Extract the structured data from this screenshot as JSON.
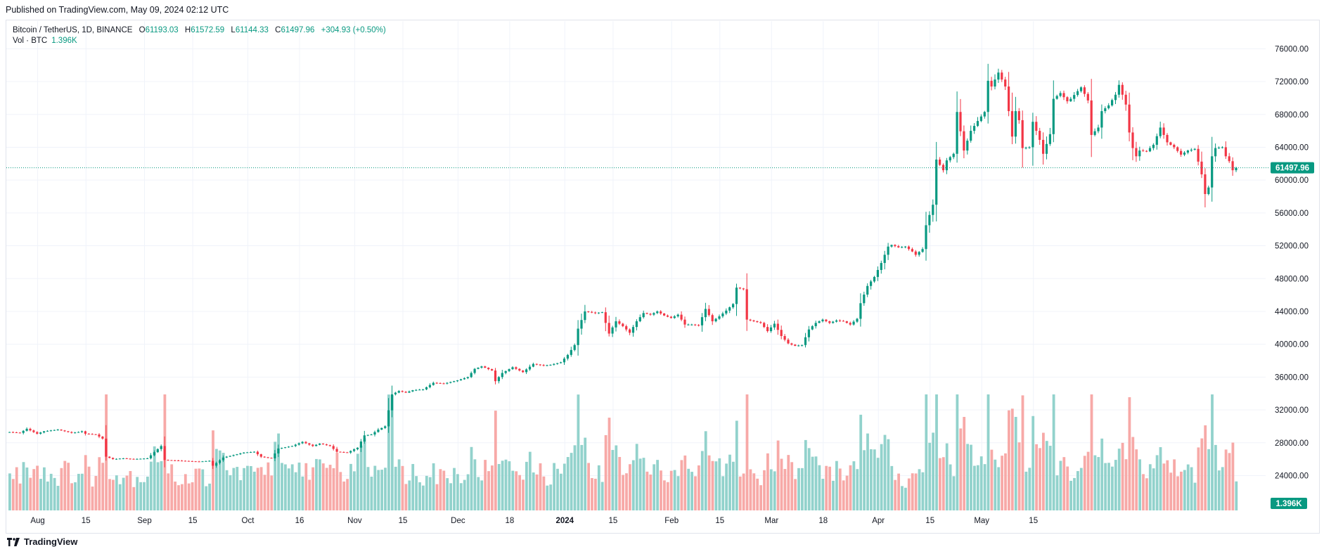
{
  "header": {
    "published": "Published on TradingView.com, May 09, 2024 02:12 UTC"
  },
  "legend": {
    "symbol": "Bitcoin / TetherUS, 1D, BINANCE",
    "o_label": "O",
    "o_value": "61193.03",
    "h_label": "H",
    "h_value": "61572.59",
    "l_label": "L",
    "l_value": "61144.33",
    "c_label": "C",
    "c_value": "61497.96",
    "change": "+304.93 (+0.50%)"
  },
  "vol_legend": {
    "label": "Vol · BTC",
    "value": "1.396K"
  },
  "footer": {
    "brand": "TradingView"
  },
  "colors": {
    "up": "#089981",
    "down": "#f23645",
    "vol_up": "#92d2cc",
    "vol_down": "#f7a9a7",
    "grid": "#f0f3fa"
  },
  "chart_data": {
    "type": "candlestick",
    "symbol": "BTCUSDT",
    "interval": "1D",
    "x": [
      "Aug",
      "15",
      "Sep",
      "15",
      "Oct",
      "16",
      "Nov",
      "15",
      "Dec",
      "18",
      "2024",
      "15",
      "Feb",
      "15",
      "Mar",
      "18",
      "Apr",
      "15",
      "May",
      "15"
    ],
    "y_ticks": [
      "76000.00",
      "72000.00",
      "68000.00",
      "64000.00",
      "60000.00",
      "56000.00",
      "52000.00",
      "48000.00",
      "44000.00",
      "40000.00",
      "36000.00",
      "32000.00",
      "28000.00",
      "24000.00"
    ],
    "ylim": [
      22000,
      78000
    ],
    "last_price_label": "61497.96",
    "volume_label": "1.396K",
    "close_anchors": [
      [
        0,
        29300
      ],
      [
        3,
        29200
      ],
      [
        5,
        29700
      ],
      [
        8,
        29100
      ],
      [
        10,
        29400
      ],
      [
        12,
        29500
      ],
      [
        14,
        29600
      ],
      [
        16,
        29400
      ],
      [
        18,
        29200
      ],
      [
        20,
        29300
      ],
      [
        21,
        29400
      ],
      [
        22,
        29100
      ],
      [
        25,
        29000
      ],
      [
        27,
        28500
      ],
      [
        28,
        26300
      ],
      [
        30,
        26000
      ],
      [
        33,
        26100
      ],
      [
        36,
        26000
      ],
      [
        40,
        26100
      ],
      [
        44,
        27600
      ],
      [
        45,
        25900
      ],
      [
        50,
        25800
      ],
      [
        55,
        25700
      ],
      [
        58,
        25800
      ],
      [
        59,
        25200
      ],
      [
        62,
        26200
      ],
      [
        65,
        26500
      ],
      [
        68,
        26800
      ],
      [
        71,
        26900
      ],
      [
        73,
        26300
      ],
      [
        76,
        26100
      ],
      [
        78,
        27300
      ],
      [
        82,
        27600
      ],
      [
        85,
        28100
      ],
      [
        88,
        27600
      ],
      [
        90,
        27900
      ],
      [
        93,
        27600
      ],
      [
        95,
        26900
      ],
      [
        98,
        26800
      ],
      [
        101,
        27400
      ],
      [
        103,
        28900
      ],
      [
        105,
        29000
      ],
      [
        107,
        29600
      ],
      [
        109,
        30000
      ],
      [
        111,
        33900
      ],
      [
        113,
        34300
      ],
      [
        115,
        34100
      ],
      [
        117,
        34400
      ],
      [
        120,
        34500
      ],
      [
        123,
        35300
      ],
      [
        126,
        35200
      ],
      [
        130,
        35600
      ],
      [
        133,
        36000
      ],
      [
        135,
        37000
      ],
      [
        137,
        37300
      ],
      [
        140,
        36800
      ],
      [
        141,
        35500
      ],
      [
        143,
        36500
      ],
      [
        146,
        37200
      ],
      [
        149,
        36600
      ],
      [
        152,
        37600
      ],
      [
        155,
        37400
      ],
      [
        157,
        37500
      ],
      [
        160,
        37800
      ],
      [
        162,
        38700
      ],
      [
        164,
        39900
      ],
      [
        165,
        41900
      ],
      [
        167,
        44000
      ],
      [
        170,
        43800
      ],
      [
        172,
        43900
      ],
      [
        174,
        41300
      ],
      [
        176,
        42800
      ],
      [
        178,
        42200
      ],
      [
        180,
        41400
      ],
      [
        182,
        42800
      ],
      [
        184,
        43800
      ],
      [
        186,
        43600
      ],
      [
        188,
        44000
      ],
      [
        190,
        43500
      ],
      [
        192,
        43200
      ],
      [
        194,
        43600
      ],
      [
        196,
        42400
      ],
      [
        198,
        42400
      ],
      [
        200,
        42300
      ],
      [
        202,
        44300
      ],
      [
        204,
        42800
      ],
      [
        206,
        43400
      ],
      [
        208,
        44100
      ],
      [
        210,
        44900
      ],
      [
        211,
        46900
      ],
      [
        213,
        46700
      ],
      [
        214,
        43000
      ],
      [
        216,
        42800
      ],
      [
        218,
        42600
      ],
      [
        220,
        41600
      ],
      [
        222,
        42500
      ],
      [
        224,
        41000
      ],
      [
        226,
        40100
      ],
      [
        228,
        39800
      ],
      [
        230,
        39900
      ],
      [
        232,
        41800
      ],
      [
        234,
        42600
      ],
      [
        236,
        43000
      ],
      [
        238,
        42600
      ],
      [
        240,
        42900
      ],
      [
        242,
        42800
      ],
      [
        244,
        42400
      ],
      [
        246,
        43100
      ],
      [
        247,
        45000
      ],
      [
        249,
        47100
      ],
      [
        251,
        48200
      ],
      [
        253,
        49900
      ],
      [
        255,
        51900
      ],
      [
        256,
        52100
      ],
      [
        258,
        51800
      ],
      [
        260,
        51900
      ],
      [
        262,
        51300
      ],
      [
        263,
        50900
      ],
      [
        265,
        51600
      ],
      [
        266,
        54500
      ],
      [
        268,
        57000
      ],
      [
        269,
        62500
      ],
      [
        271,
        61200
      ],
      [
        272,
        62400
      ],
      [
        274,
        63200
      ],
      [
        275,
        68300
      ],
      [
        277,
        63600
      ],
      [
        279,
        66000
      ],
      [
        281,
        67200
      ],
      [
        283,
        68300
      ],
      [
        284,
        72100
      ],
      [
        285,
        71400
      ],
      [
        287,
        73100
      ],
      [
        289,
        71400
      ],
      [
        290,
        68400
      ],
      [
        291,
        65300
      ],
      [
        292,
        68400
      ],
      [
        293,
        67300
      ],
      [
        294,
        63900
      ],
      [
        296,
        64000
      ],
      [
        297,
        67100
      ],
      [
        299,
        64900
      ],
      [
        300,
        63200
      ],
      [
        302,
        65600
      ],
      [
        303,
        69900
      ],
      [
        305,
        70600
      ],
      [
        307,
        69600
      ],
      [
        308,
        69900
      ],
      [
        311,
        71300
      ],
      [
        313,
        69700
      ],
      [
        314,
        65500
      ],
      [
        316,
        66400
      ],
      [
        317,
        68400
      ],
      [
        319,
        69100
      ],
      [
        321,
        70400
      ],
      [
        322,
        71600
      ],
      [
        324,
        69200
      ],
      [
        325,
        65800
      ],
      [
        326,
        63900
      ],
      [
        327,
        62900
      ],
      [
        328,
        63600
      ],
      [
        330,
        63500
      ],
      [
        332,
        64300
      ],
      [
        334,
        66400
      ],
      [
        336,
        64600
      ],
      [
        338,
        64000
      ],
      [
        340,
        63100
      ],
      [
        342,
        63600
      ],
      [
        344,
        63800
      ],
      [
        346,
        60700
      ],
      [
        347,
        58300
      ],
      [
        348,
        59100
      ],
      [
        349,
        62900
      ],
      [
        350,
        63900
      ],
      [
        352,
        64000
      ],
      [
        353,
        62900
      ],
      [
        354,
        62300
      ],
      [
        355,
        61200
      ],
      [
        356,
        61498
      ]
    ]
  }
}
